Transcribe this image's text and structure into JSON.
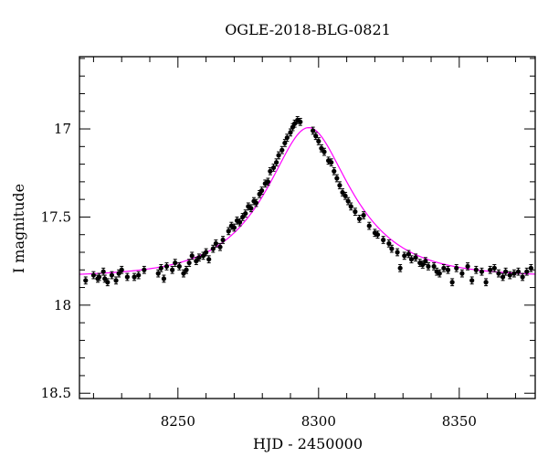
{
  "chart_data": {
    "type": "scatter",
    "title": "OGLE-2018-BLG-0821",
    "xlabel": "HJD - 2450000",
    "ylabel": "I magnitude",
    "xlim": [
      8215,
      8377
    ],
    "ylim": [
      18.53,
      16.59
    ],
    "y_inverted": true,
    "grid": false,
    "x_ticks": [
      8250,
      8300,
      8350
    ],
    "y_ticks": [
      17,
      17.5,
      18,
      18.5
    ],
    "y_tick_labels": [
      "17",
      "17.5",
      "18",
      "18.5"
    ],
    "marker_color": "#000000",
    "model_color": "#ff00ff",
    "model": {
      "t0": 8296.5,
      "u0": 0.5,
      "tE": 26,
      "baseline_mag": 17.84
    },
    "series": [
      {
        "values": [
          [
            8217.2,
            17.86,
            0.02
          ],
          [
            8220.0,
            17.83,
            0.02
          ],
          [
            8221.5,
            17.85,
            0.02
          ],
          [
            8222.0,
            17.84,
            0.02
          ],
          [
            8223.5,
            17.81,
            0.02
          ],
          [
            8224.0,
            17.85,
            0.02
          ],
          [
            8225.0,
            17.87,
            0.02
          ],
          [
            8226.5,
            17.83,
            0.02
          ],
          [
            8228.0,
            17.86,
            0.02
          ],
          [
            8229.0,
            17.82,
            0.02
          ],
          [
            8230.0,
            17.8,
            0.02
          ],
          [
            8232.0,
            17.84,
            0.02
          ],
          [
            8234.5,
            17.84,
            0.02
          ],
          [
            8236.0,
            17.83,
            0.02
          ],
          [
            8238.0,
            17.8,
            0.02
          ],
          [
            8243.0,
            17.82,
            0.02
          ],
          [
            8244.0,
            17.79,
            0.02
          ],
          [
            8245.0,
            17.85,
            0.02
          ],
          [
            8246.0,
            17.78,
            0.02
          ],
          [
            8248.0,
            17.8,
            0.02
          ],
          [
            8249.0,
            17.76,
            0.02
          ],
          [
            8250.5,
            17.78,
            0.02
          ],
          [
            8252.0,
            17.82,
            0.02
          ],
          [
            8253.0,
            17.8,
            0.02
          ],
          [
            8254.0,
            17.76,
            0.02
          ],
          [
            8255.0,
            17.72,
            0.02
          ],
          [
            8256.5,
            17.75,
            0.02
          ],
          [
            8257.5,
            17.73,
            0.02
          ],
          [
            8259.0,
            17.72,
            0.02
          ],
          [
            8260.0,
            17.7,
            0.02
          ],
          [
            8261.0,
            17.74,
            0.02
          ],
          [
            8262.5,
            17.68,
            0.02
          ],
          [
            8263.5,
            17.65,
            0.02
          ],
          [
            8265.0,
            17.67,
            0.02
          ],
          [
            8266.0,
            17.63,
            0.02
          ],
          [
            8268.0,
            17.58,
            0.02
          ],
          [
            8269.0,
            17.55,
            0.02
          ],
          [
            8270.0,
            17.56,
            0.02
          ],
          [
            8271.0,
            17.52,
            0.02
          ],
          [
            8272.0,
            17.53,
            0.02
          ],
          [
            8273.0,
            17.5,
            0.02
          ],
          [
            8274.0,
            17.48,
            0.02
          ],
          [
            8275.0,
            17.44,
            0.02
          ],
          [
            8276.0,
            17.45,
            0.02
          ],
          [
            8277.0,
            17.41,
            0.02
          ],
          [
            8277.8,
            17.42,
            0.02
          ],
          [
            8279.0,
            17.37,
            0.02
          ],
          [
            8279.8,
            17.35,
            0.02
          ],
          [
            8281.0,
            17.31,
            0.02
          ],
          [
            8282.0,
            17.3,
            0.02
          ],
          [
            8282.8,
            17.24,
            0.02
          ],
          [
            8284.0,
            17.22,
            0.02
          ],
          [
            8285.0,
            17.19,
            0.02
          ],
          [
            8285.8,
            17.15,
            0.02
          ],
          [
            8287.0,
            17.12,
            0.02
          ],
          [
            8288.0,
            17.08,
            0.02
          ],
          [
            8288.8,
            17.05,
            0.02
          ],
          [
            8290.0,
            17.02,
            0.02
          ],
          [
            8290.8,
            16.99,
            0.02
          ],
          [
            8291.5,
            16.97,
            0.02
          ],
          [
            8292.5,
            16.95,
            0.02
          ],
          [
            8293.5,
            16.96,
            0.02
          ],
          [
            8298.0,
            17.01,
            0.02
          ],
          [
            8299.0,
            17.04,
            0.02
          ],
          [
            8300.0,
            17.07,
            0.02
          ],
          [
            8301.0,
            17.11,
            0.02
          ],
          [
            8302.0,
            17.13,
            0.02
          ],
          [
            8303.5,
            17.18,
            0.02
          ],
          [
            8304.5,
            17.19,
            0.02
          ],
          [
            8305.5,
            17.24,
            0.02
          ],
          [
            8306.5,
            17.28,
            0.02
          ],
          [
            8307.5,
            17.32,
            0.02
          ],
          [
            8308.5,
            17.36,
            0.02
          ],
          [
            8309.5,
            17.38,
            0.02
          ],
          [
            8310.5,
            17.41,
            0.02
          ],
          [
            8311.5,
            17.44,
            0.02
          ],
          [
            8313.0,
            17.47,
            0.02
          ],
          [
            8314.5,
            17.51,
            0.02
          ],
          [
            8316.0,
            17.49,
            0.02
          ],
          [
            8318.0,
            17.55,
            0.02
          ],
          [
            8320.0,
            17.59,
            0.02
          ],
          [
            8321.0,
            17.6,
            0.02
          ],
          [
            8323.0,
            17.63,
            0.02
          ],
          [
            8325.0,
            17.65,
            0.02
          ],
          [
            8326.0,
            17.68,
            0.02
          ],
          [
            8328.0,
            17.7,
            0.02
          ],
          [
            8329.0,
            17.79,
            0.02
          ],
          [
            8330.5,
            17.72,
            0.02
          ],
          [
            8332.0,
            17.71,
            0.02
          ],
          [
            8333.0,
            17.74,
            0.02
          ],
          [
            8334.5,
            17.73,
            0.02
          ],
          [
            8336.0,
            17.76,
            0.02
          ],
          [
            8337.0,
            17.77,
            0.02
          ],
          [
            8338.0,
            17.75,
            0.02
          ],
          [
            8339.0,
            17.78,
            0.02
          ],
          [
            8341.0,
            17.78,
            0.02
          ],
          [
            8342.0,
            17.81,
            0.02
          ],
          [
            8343.0,
            17.82,
            0.02
          ],
          [
            8344.5,
            17.79,
            0.02
          ],
          [
            8346.0,
            17.8,
            0.02
          ],
          [
            8347.5,
            17.87,
            0.02
          ],
          [
            8349.0,
            17.79,
            0.02
          ],
          [
            8351.0,
            17.82,
            0.02
          ],
          [
            8353.0,
            17.78,
            0.02
          ],
          [
            8354.5,
            17.86,
            0.02
          ],
          [
            8356.0,
            17.8,
            0.02
          ],
          [
            8358.0,
            17.81,
            0.02
          ],
          [
            8359.5,
            17.87,
            0.02
          ],
          [
            8361.0,
            17.8,
            0.02
          ],
          [
            8362.5,
            17.79,
            0.02
          ],
          [
            8364.0,
            17.82,
            0.02
          ],
          [
            8365.5,
            17.84,
            0.02
          ],
          [
            8366.5,
            17.81,
            0.02
          ],
          [
            8368.0,
            17.83,
            0.02
          ],
          [
            8369.5,
            17.82,
            0.02
          ],
          [
            8371.0,
            17.81,
            0.02
          ],
          [
            8372.5,
            17.84,
            0.02
          ],
          [
            8374.0,
            17.81,
            0.02
          ],
          [
            8375.5,
            17.79,
            0.02
          ]
        ]
      }
    ]
  }
}
